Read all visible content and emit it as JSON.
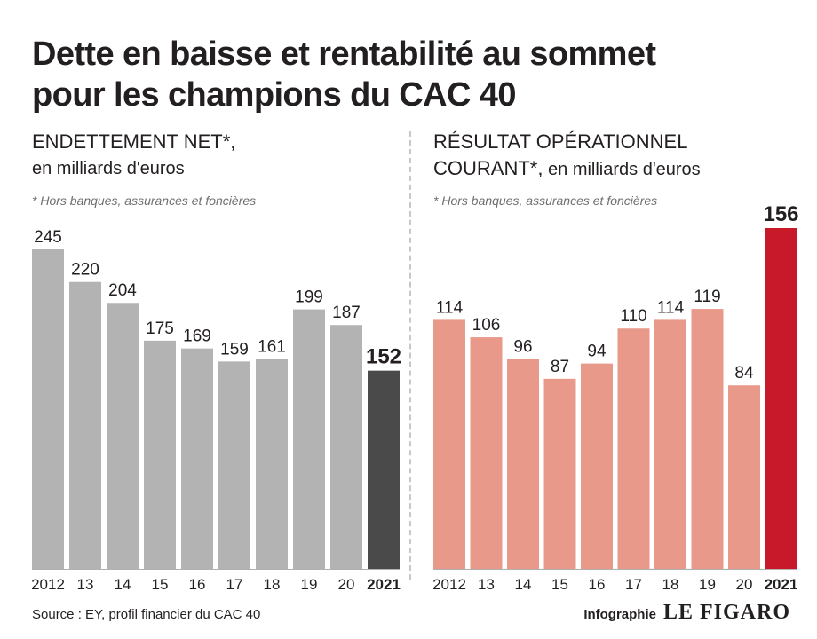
{
  "title": {
    "line1": "Dette en baisse et rentabilité au sommet",
    "line2": "pour les champions du CAC 40"
  },
  "left_panel": {
    "heading": "ENDETTEMENT NET*,",
    "subheading": "en milliards d'euros",
    "note": "* Hors banques, assurances et foncières"
  },
  "right_panel": {
    "heading": "RÉSULTAT OPÉRATIONNEL",
    "subheading_strong": "COURANT*,",
    "subheading": " en milliards d'euros",
    "note": "* Hors banques, assurances et foncières"
  },
  "source": "Source : EY, profil financier du CAC 40",
  "credit": {
    "label": "Infographie",
    "brand": "LE FIGARO"
  },
  "colors": {
    "left_bar": "#b3b3b3",
    "left_highlight": "#4a4a4a",
    "right_bar": "#e9998a",
    "right_highlight": "#c8192a",
    "axis": "#b0b0b0"
  },
  "chart_data": [
    {
      "type": "bar",
      "categories": [
        "2012",
        "13",
        "14",
        "15",
        "16",
        "17",
        "18",
        "19",
        "20",
        "2021"
      ],
      "values": [
        245,
        220,
        204,
        175,
        169,
        159,
        161,
        199,
        187,
        152
      ],
      "title": "ENDETTEMENT NET*, en milliards d'euros",
      "highlight_index": 9,
      "ylim": [
        0,
        245
      ],
      "grid": false
    },
    {
      "type": "bar",
      "categories": [
        "2012",
        "13",
        "14",
        "15",
        "16",
        "17",
        "18",
        "19",
        "20",
        "2021"
      ],
      "values": [
        114,
        106,
        96,
        87,
        94,
        110,
        114,
        119,
        84,
        156
      ],
      "title": "RÉSULTAT OPÉRATIONNEL COURANT*, en milliards d'euros",
      "highlight_index": 9,
      "ylim": [
        0,
        156
      ],
      "grid": false
    }
  ]
}
